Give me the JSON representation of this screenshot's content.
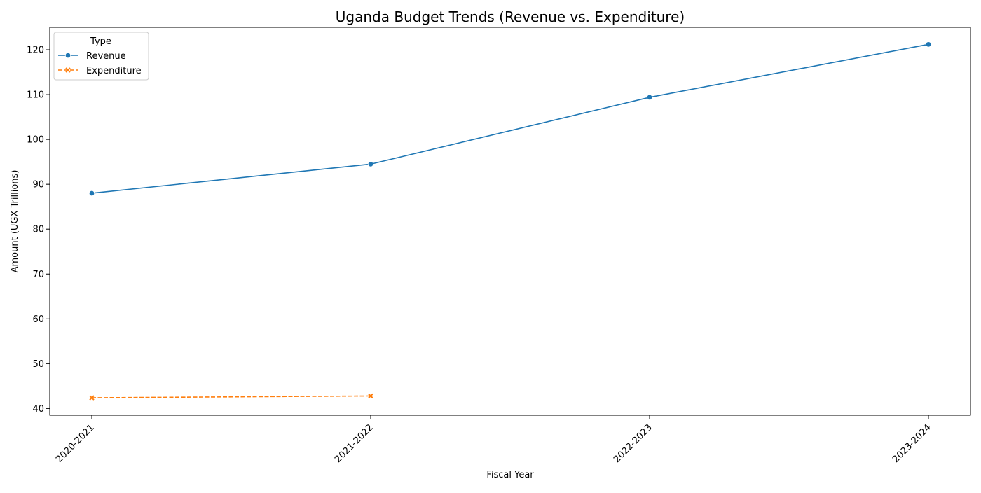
{
  "chart_data": {
    "type": "line",
    "title": "Uganda Budget Trends (Revenue vs. Expenditure)",
    "xlabel": "Fiscal Year",
    "ylabel": "Amount (UGX Trillions)",
    "categories": [
      "2020-2021",
      "2021-2022",
      "2022-2023",
      "2023-2024"
    ],
    "ylim": [
      38.5,
      125
    ],
    "yticks": [
      40,
      50,
      60,
      70,
      80,
      90,
      100,
      110,
      120
    ],
    "grid": false,
    "legend": {
      "title": "Type",
      "placement": "top-left"
    },
    "series": [
      {
        "name": "Revenue",
        "color": "#1f77b4",
        "line_style": "solid",
        "marker": "circle",
        "values": [
          88.0,
          94.5,
          109.4,
          121.2
        ]
      },
      {
        "name": "Expenditure",
        "color": "#ff7f0e",
        "line_style": "dashed",
        "marker": "x",
        "values": [
          42.4,
          42.8,
          null,
          null
        ]
      }
    ]
  }
}
